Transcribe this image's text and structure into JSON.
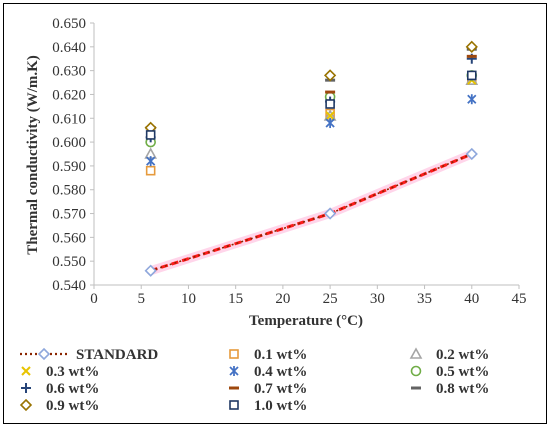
{
  "chart_data": {
    "type": "scatter",
    "xlabel": "Temperature (°C)",
    "ylabel": "Thermal conductivity (W/m.K)",
    "xlim": [
      0,
      45
    ],
    "ylim": [
      0.54,
      0.65
    ],
    "xticks": [
      "0",
      "5",
      "10",
      "15",
      "20",
      "25",
      "30",
      "35",
      "40",
      "45"
    ],
    "yticks": [
      "0.540",
      "0.550",
      "0.560",
      "0.570",
      "0.580",
      "0.590",
      "0.600",
      "0.610",
      "0.620",
      "0.630",
      "0.640",
      "0.650"
    ],
    "grid": false,
    "legend_position": "bottom",
    "x": [
      6,
      25,
      40
    ],
    "series": [
      {
        "name": "STANDARD",
        "values": [
          0.546,
          0.57,
          0.595
        ],
        "marker": "diamond-open",
        "color": "#8fa8dc",
        "line": "dotted",
        "line_color": "#8b2500"
      },
      {
        "name": "0.1 wt%",
        "values": [
          0.588,
          0.612,
          0.627
        ],
        "marker": "square-open",
        "color": "#e69a3c"
      },
      {
        "name": "0.2 wt%",
        "values": [
          0.595,
          0.611,
          0.626
        ],
        "marker": "triangle-open",
        "color": "#a5a5a5"
      },
      {
        "name": "0.3 wt%",
        "values": [
          0.605,
          0.611,
          0.626
        ],
        "marker": "x",
        "color": "#e8c300"
      },
      {
        "name": "0.4 wt%",
        "values": [
          0.592,
          0.608,
          0.618
        ],
        "marker": "asterisk",
        "color": "#4472c4"
      },
      {
        "name": "0.5 wt%",
        "values": [
          0.6,
          0.619,
          0.628
        ],
        "marker": "circle-open",
        "color": "#70ad47"
      },
      {
        "name": "0.6 wt%",
        "values": [
          0.602,
          0.617,
          0.635
        ],
        "marker": "plus",
        "color": "#264478"
      },
      {
        "name": "0.7 wt%",
        "values": [
          0.606,
          0.621,
          0.636
        ],
        "marker": "dash",
        "color": "#9e480e"
      },
      {
        "name": "0.8 wt%",
        "values": [
          0.606,
          0.626,
          0.639
        ],
        "marker": "dash",
        "color": "#636363"
      },
      {
        "name": "0.9 wt%",
        "values": [
          0.606,
          0.628,
          0.64
        ],
        "marker": "diamond-open",
        "color": "#997300"
      },
      {
        "name": "1.0 wt%",
        "values": [
          0.603,
          0.616,
          0.628
        ],
        "marker": "square-open",
        "color": "#1f3864"
      }
    ],
    "trendline": {
      "series": "STANDARD",
      "color": "#ff1a1a",
      "style": "dashed",
      "glow": "#ffb3d9"
    }
  }
}
